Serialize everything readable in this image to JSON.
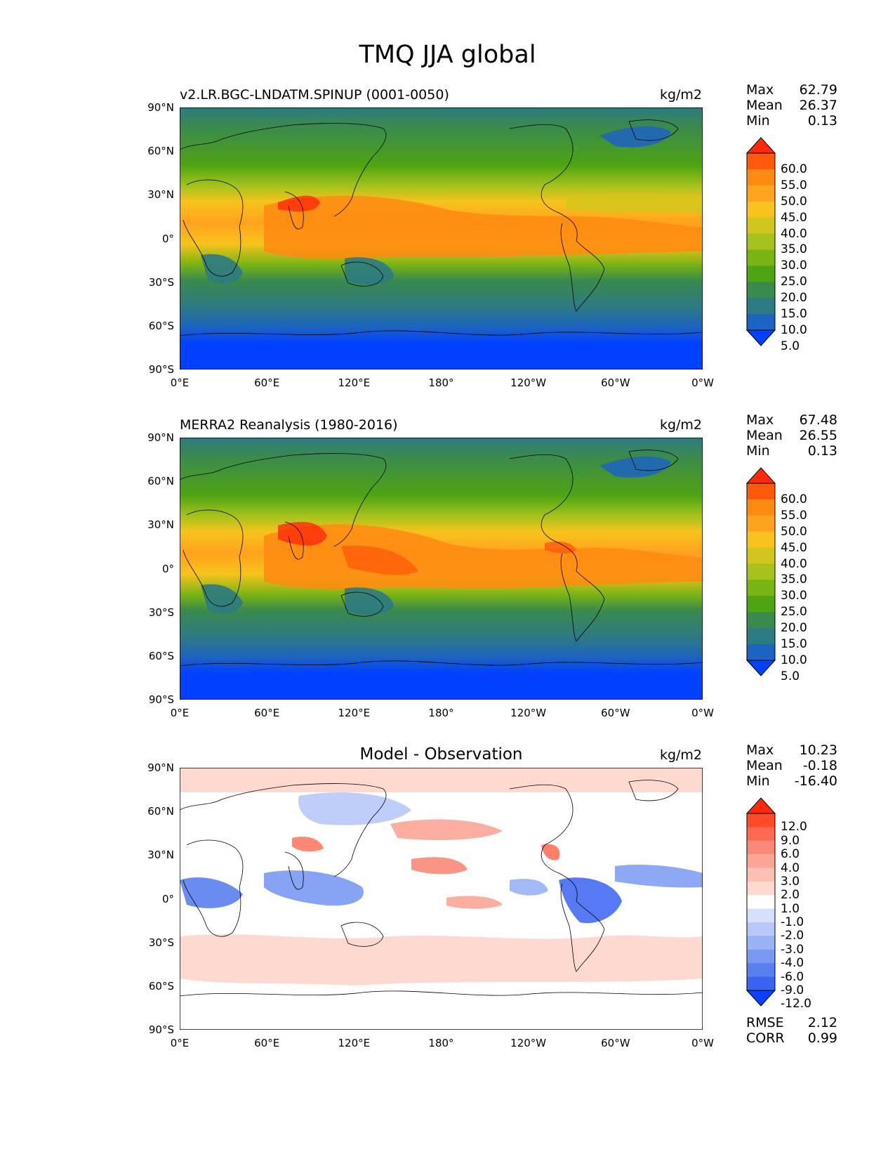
{
  "figure": {
    "title": "TMQ JJA global"
  },
  "axes": {
    "lat_labels": [
      "90°N",
      "60°N",
      "30°N",
      "0°",
      "30°S",
      "60°S",
      "90°S"
    ],
    "lon_labels": [
      "0°E",
      "60°E",
      "120°E",
      "180°",
      "120°W",
      "60°W",
      "0°W"
    ]
  },
  "panels": [
    {
      "title": "v2.LR.BGC-LNDATM.SPINUP (0001-0050)",
      "units": "kg/m2",
      "stats": {
        "max_label": "Max",
        "max": "62.79",
        "mean_label": "Mean",
        "mean": "26.37",
        "min_label": "Min",
        "min": "0.13"
      },
      "colorbar": {
        "labels": [
          "60.0",
          "55.0",
          "50.0",
          "45.0",
          "40.0",
          "35.0",
          "30.0",
          "25.0",
          "20.0",
          "15.0",
          "10.0",
          "5.0"
        ],
        "colors": [
          "#ff2a0a",
          "#ff5a0a",
          "#ff8a12",
          "#ffa21e",
          "#f7c31c",
          "#d2c61e",
          "#a6c21c",
          "#78b414",
          "#4ea412",
          "#3a8a4e",
          "#2e7a82",
          "#1d63c2",
          "#0040ff"
        ]
      }
    },
    {
      "title": "MERRA2 Reanalysis (1980-2016)",
      "units": "kg/m2",
      "stats": {
        "max_label": "Max",
        "max": "67.48",
        "mean_label": "Mean",
        "mean": "26.55",
        "min_label": "Min",
        "min": "0.13"
      },
      "colorbar": {
        "labels": [
          "60.0",
          "55.0",
          "50.0",
          "45.0",
          "40.0",
          "35.0",
          "30.0",
          "25.0",
          "20.0",
          "15.0",
          "10.0",
          "5.0"
        ],
        "colors": [
          "#ff2a0a",
          "#ff5a0a",
          "#ff8a12",
          "#ffa21e",
          "#f7c31c",
          "#d2c61e",
          "#a6c21c",
          "#78b414",
          "#4ea412",
          "#3a8a4e",
          "#2e7a82",
          "#1d63c2",
          "#0040ff"
        ]
      }
    },
    {
      "title": "Model - Observation",
      "units": "kg/m2",
      "stats": {
        "max_label": "Max",
        "max": "10.23",
        "mean_label": "Mean",
        "mean": "-0.18",
        "min_label": "Min",
        "min": "-16.40"
      },
      "colorbar": {
        "labels": [
          "12.0",
          "9.0",
          "6.0",
          "4.0",
          "3.0",
          "2.0",
          "1.0",
          "-1.0",
          "-2.0",
          "-3.0",
          "-4.0",
          "-6.0",
          "-9.0",
          "-12.0"
        ],
        "colors": [
          "#ff2a0a",
          "#ff4a2a",
          "#ff6a50",
          "#fa8a78",
          "#fba596",
          "#fcc0b4",
          "#fdd9d0",
          "#ffffff",
          "#d6e0fb",
          "#b8c9f8",
          "#99b1f5",
          "#7a99f2",
          "#5a7ff0",
          "#3a63f2",
          "#0a40ff"
        ]
      },
      "metrics": {
        "rmse_label": "RMSE",
        "rmse": "2.12",
        "corr_label": "CORR",
        "corr": "0.99"
      }
    }
  ]
}
